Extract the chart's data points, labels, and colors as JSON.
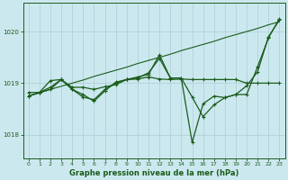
{
  "xlabel": "Graphe pression niveau de la mer (hPa)",
  "background_color": "#cce8ef",
  "grid_color": "#aacdd4",
  "line_color": "#1a5c1a",
  "xlim": [
    -0.5,
    23.5
  ],
  "ylim": [
    1017.55,
    1020.55
  ],
  "yticks": [
    1018,
    1019,
    1020
  ],
  "xticks": [
    0,
    1,
    2,
    3,
    4,
    5,
    6,
    7,
    8,
    9,
    10,
    11,
    12,
    13,
    14,
    15,
    16,
    17,
    18,
    19,
    20,
    21,
    22,
    23
  ],
  "series_flat": [
    1018.82,
    1018.82,
    1018.88,
    1019.07,
    1018.92,
    1018.92,
    1018.88,
    1018.93,
    1018.97,
    1019.07,
    1019.08,
    1019.12,
    1019.08,
    1019.07,
    1019.08,
    1019.07,
    1019.07,
    1019.07,
    1019.07,
    1019.07,
    1019.0,
    1019.0,
    1019.0,
    1019.0
  ],
  "series_volatile": [
    1018.75,
    1018.82,
    1019.05,
    1019.07,
    1018.88,
    1018.73,
    1018.68,
    1018.88,
    1019.0,
    1019.07,
    1019.12,
    1019.17,
    1019.55,
    1019.1,
    1019.1,
    1018.73,
    1018.35,
    1018.58,
    1018.72,
    1018.78,
    1018.78,
    1019.32,
    1019.88,
    1020.25
  ],
  "series_linear": [
    1018.75,
    1018.81,
    1018.88,
    1018.94,
    1019.0,
    1019.06,
    1019.13,
    1019.19,
    1019.25,
    1019.31,
    1019.38,
    1019.44,
    1019.5,
    1019.56,
    1019.63,
    1019.69,
    1019.75,
    1019.81,
    1019.88,
    1019.94,
    1020.0,
    1020.06,
    1020.13,
    1020.19
  ],
  "series_dip": [
    1018.75,
    1018.82,
    1018.92,
    1019.07,
    1018.88,
    1018.78,
    1018.65,
    1018.85,
    1019.02,
    1019.07,
    1019.1,
    1019.2,
    1019.48,
    1019.1,
    1019.1,
    1017.85,
    1018.6,
    1018.75,
    1018.72,
    1018.78,
    1018.95,
    1019.22,
    1019.9,
    1020.22
  ]
}
